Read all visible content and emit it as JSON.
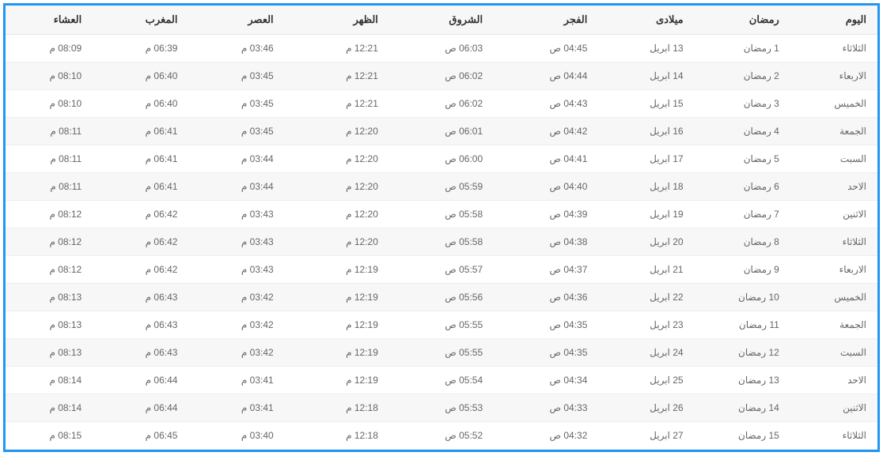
{
  "table": {
    "type": "table",
    "direction": "rtl",
    "border_color": "#2196f3",
    "header_bg": "#f7f7f7",
    "row_alt_bg": "#f7f7f7",
    "row_bg": "#ffffff",
    "text_color": "#666666",
    "header_text_color": "#333333",
    "columns": [
      "اليوم",
      "رمضان",
      "ميلادى",
      "الفجر",
      "الشروق",
      "الظهر",
      "العصر",
      "المغرب",
      "العشاء"
    ],
    "rows": [
      [
        "الثلاثاء",
        "1 رمضان",
        "13 ابريل",
        "04:45 ص",
        "06:03 ص",
        "12:21 م",
        "03:46 م",
        "06:39 م",
        "08:09 م"
      ],
      [
        "الاربعاء",
        "2 رمضان",
        "14 ابريل",
        "04:44 ص",
        "06:02 ص",
        "12:21 م",
        "03:45 م",
        "06:40 م",
        "08:10 م"
      ],
      [
        "الخميس",
        "3 رمضان",
        "15 ابريل",
        "04:43 ص",
        "06:02 ص",
        "12:21 م",
        "03:45 م",
        "06:40 م",
        "08:10 م"
      ],
      [
        "الجمعة",
        "4 رمضان",
        "16 ابريل",
        "04:42 ص",
        "06:01 ص",
        "12:20 م",
        "03:45 م",
        "06:41 م",
        "08:11 م"
      ],
      [
        "السبت",
        "5 رمضان",
        "17 ابريل",
        "04:41 ص",
        "06:00 ص",
        "12:20 م",
        "03:44 م",
        "06:41 م",
        "08:11 م"
      ],
      [
        "الاحد",
        "6 رمضان",
        "18 ابريل",
        "04:40 ص",
        "05:59 ص",
        "12:20 م",
        "03:44 م",
        "06:41 م",
        "08:11 م"
      ],
      [
        "الاثنين",
        "7 رمضان",
        "19 ابريل",
        "04:39 ص",
        "05:58 ص",
        "12:20 م",
        "03:43 م",
        "06:42 م",
        "08:12 م"
      ],
      [
        "الثلاثاء",
        "8 رمضان",
        "20 ابريل",
        "04:38 ص",
        "05:58 ص",
        "12:20 م",
        "03:43 م",
        "06:42 م",
        "08:12 م"
      ],
      [
        "الاربعاء",
        "9 رمضان",
        "21 ابريل",
        "04:37 ص",
        "05:57 ص",
        "12:19 م",
        "03:43 م",
        "06:42 م",
        "08:12 م"
      ],
      [
        "الخميس",
        "10 رمضان",
        "22 ابريل",
        "04:36 ص",
        "05:56 ص",
        "12:19 م",
        "03:42 م",
        "06:43 م",
        "08:13 م"
      ],
      [
        "الجمعة",
        "11 رمضان",
        "23 ابريل",
        "04:35 ص",
        "05:55 ص",
        "12:19 م",
        "03:42 م",
        "06:43 م",
        "08:13 م"
      ],
      [
        "السبت",
        "12 رمضان",
        "24 ابريل",
        "04:35 ص",
        "05:55 ص",
        "12:19 م",
        "03:42 م",
        "06:43 م",
        "08:13 م"
      ],
      [
        "الاحد",
        "13 رمضان",
        "25 ابريل",
        "04:34 ص",
        "05:54 ص",
        "12:19 م",
        "03:41 م",
        "06:44 م",
        "08:14 م"
      ],
      [
        "الاثنين",
        "14 رمضان",
        "26 ابريل",
        "04:33 ص",
        "05:53 ص",
        "12:18 م",
        "03:41 م",
        "06:44 م",
        "08:14 م"
      ],
      [
        "الثلاثاء",
        "15 رمضان",
        "27 ابريل",
        "04:32 ص",
        "05:52 ص",
        "12:18 م",
        "03:40 م",
        "06:45 م",
        "08:15 م"
      ]
    ]
  }
}
